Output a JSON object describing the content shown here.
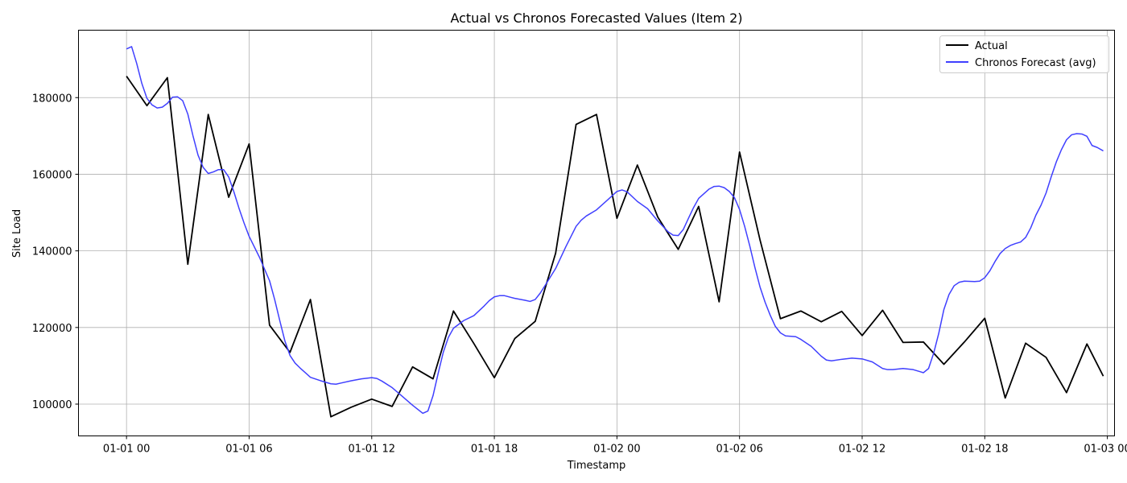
{
  "chart_data": {
    "type": "line",
    "title": "Actual vs Chronos Forecasted Values (Item 2)",
    "xlabel": "Timestamp",
    "ylabel": "Site Load",
    "x_unit": "hours since 01-01 00",
    "xlim": [
      -2.35,
      48.35
    ],
    "ylim": [
      91700,
      197600
    ],
    "grid": true,
    "legend_position": "top-right",
    "x_ticks": [
      {
        "value": 0,
        "label": "01-01 00"
      },
      {
        "value": 6,
        "label": "01-01 06"
      },
      {
        "value": 12,
        "label": "01-01 12"
      },
      {
        "value": 18,
        "label": "01-01 18"
      },
      {
        "value": 24,
        "label": "01-02 00"
      },
      {
        "value": 30,
        "label": "01-02 06"
      },
      {
        "value": 36,
        "label": "01-02 12"
      },
      {
        "value": 42,
        "label": "01-02 18"
      },
      {
        "value": 48,
        "label": "01-03 00"
      }
    ],
    "y_ticks": [
      {
        "value": 100000,
        "label": "100000"
      },
      {
        "value": 120000,
        "label": "120000"
      },
      {
        "value": 140000,
        "label": "140000"
      },
      {
        "value": 160000,
        "label": "160000"
      },
      {
        "value": 180000,
        "label": "180000"
      }
    ],
    "series": [
      {
        "name": "Actual",
        "color": "#000000",
        "points": [
          [
            0,
            185600
          ],
          [
            1,
            177900
          ],
          [
            2,
            185200
          ],
          [
            3,
            136500
          ],
          [
            4,
            175600
          ],
          [
            5,
            154000
          ],
          [
            6,
            167900
          ],
          [
            7,
            120600
          ],
          [
            8,
            113500
          ],
          [
            9,
            127300
          ],
          [
            10,
            96700
          ],
          [
            11,
            99200
          ],
          [
            12,
            101300
          ],
          [
            13,
            99400
          ],
          [
            14,
            109700
          ],
          [
            15,
            106600
          ],
          [
            16,
            124300
          ],
          [
            17,
            115800
          ],
          [
            18,
            106900
          ],
          [
            19,
            117100
          ],
          [
            20,
            121600
          ],
          [
            21,
            139400
          ],
          [
            22,
            173000
          ],
          [
            23,
            175600
          ],
          [
            24,
            148500
          ],
          [
            25,
            162400
          ],
          [
            26,
            148800
          ],
          [
            27,
            140400
          ],
          [
            28,
            151600
          ],
          [
            29,
            126700
          ],
          [
            30,
            165800
          ],
          [
            31,
            142900
          ],
          [
            32,
            122300
          ],
          [
            33,
            124300
          ],
          [
            34,
            121500
          ],
          [
            35,
            124200
          ],
          [
            36,
            117900
          ],
          [
            37,
            124500
          ],
          [
            38,
            116100
          ],
          [
            39,
            116200
          ],
          [
            40,
            110400
          ],
          [
            41,
            116200
          ],
          [
            42,
            122400
          ],
          [
            43,
            101600
          ],
          [
            44,
            115900
          ],
          [
            45,
            112200
          ],
          [
            46,
            103000
          ],
          [
            47,
            115700
          ],
          [
            47.8,
            107300
          ]
        ]
      },
      {
        "name": "Chronos Forecast (avg)",
        "color": "#4040ff",
        "points": [
          [
            0,
            192700
          ],
          [
            0.25,
            193300
          ],
          [
            0.5,
            188900
          ],
          [
            0.75,
            183700
          ],
          [
            1,
            179800
          ],
          [
            1.25,
            178100
          ],
          [
            1.5,
            177300
          ],
          [
            1.75,
            177500
          ],
          [
            2,
            178500
          ],
          [
            2.25,
            180100
          ],
          [
            2.5,
            180200
          ],
          [
            2.75,
            179200
          ],
          [
            3,
            175700
          ],
          [
            3.25,
            170100
          ],
          [
            3.5,
            165000
          ],
          [
            3.75,
            161800
          ],
          [
            4,
            160200
          ],
          [
            4.25,
            160600
          ],
          [
            4.5,
            161200
          ],
          [
            4.75,
            161200
          ],
          [
            5,
            159300
          ],
          [
            5.25,
            155500
          ],
          [
            5.5,
            151200
          ],
          [
            5.75,
            147300
          ],
          [
            6,
            143800
          ],
          [
            6.5,
            138400
          ],
          [
            7,
            132200
          ],
          [
            7.25,
            127300
          ],
          [
            7.5,
            121800
          ],
          [
            7.75,
            116500
          ],
          [
            8,
            112700
          ],
          [
            8.25,
            110700
          ],
          [
            8.5,
            109400
          ],
          [
            9,
            107000
          ],
          [
            9.5,
            106100
          ],
          [
            10,
            105300
          ],
          [
            10.25,
            105200
          ],
          [
            10.5,
            105500
          ],
          [
            11,
            106100
          ],
          [
            11.5,
            106600
          ],
          [
            12,
            106900
          ],
          [
            12.25,
            106700
          ],
          [
            12.5,
            106000
          ],
          [
            13,
            104300
          ],
          [
            13.5,
            102000
          ],
          [
            14,
            99700
          ],
          [
            14.5,
            97600
          ],
          [
            14.75,
            98200
          ],
          [
            15,
            102200
          ],
          [
            15.25,
            108000
          ],
          [
            15.5,
            113500
          ],
          [
            15.75,
            117400
          ],
          [
            16,
            119800
          ],
          [
            16.5,
            121800
          ],
          [
            17,
            123100
          ],
          [
            17.5,
            125600
          ],
          [
            17.75,
            127000
          ],
          [
            18,
            128000
          ],
          [
            18.25,
            128300
          ],
          [
            18.5,
            128300
          ],
          [
            19,
            127600
          ],
          [
            19.5,
            127100
          ],
          [
            19.75,
            126800
          ],
          [
            20,
            127300
          ],
          [
            20.25,
            129000
          ],
          [
            20.5,
            131100
          ],
          [
            21,
            135400
          ],
          [
            21.5,
            141100
          ],
          [
            22,
            146400
          ],
          [
            22.25,
            148000
          ],
          [
            22.5,
            149100
          ],
          [
            23,
            150700
          ],
          [
            23.5,
            153100
          ],
          [
            24,
            155500
          ],
          [
            24.25,
            155900
          ],
          [
            24.5,
            155400
          ],
          [
            25,
            152900
          ],
          [
            25.5,
            151000
          ],
          [
            26,
            147800
          ],
          [
            26.5,
            145000
          ],
          [
            26.75,
            144100
          ],
          [
            27,
            144000
          ],
          [
            27.25,
            145600
          ],
          [
            27.5,
            148500
          ],
          [
            27.75,
            151300
          ],
          [
            28,
            153700
          ],
          [
            28.5,
            156100
          ],
          [
            28.75,
            156800
          ],
          [
            29,
            156900
          ],
          [
            29.25,
            156500
          ],
          [
            29.5,
            155500
          ],
          [
            29.75,
            153900
          ],
          [
            30,
            150800
          ],
          [
            30.25,
            146400
          ],
          [
            30.5,
            141300
          ],
          [
            30.75,
            135700
          ],
          [
            31,
            130600
          ],
          [
            31.25,
            126600
          ],
          [
            31.5,
            123200
          ],
          [
            31.75,
            120300
          ],
          [
            32,
            118600
          ],
          [
            32.25,
            117800
          ],
          [
            32.75,
            117600
          ],
          [
            33,
            116900
          ],
          [
            33.5,
            115100
          ],
          [
            34,
            112500
          ],
          [
            34.25,
            111500
          ],
          [
            34.5,
            111300
          ],
          [
            35,
            111700
          ],
          [
            35.5,
            112000
          ],
          [
            36,
            111800
          ],
          [
            36.5,
            111000
          ],
          [
            37,
            109300
          ],
          [
            37.25,
            109000
          ],
          [
            37.5,
            109000
          ],
          [
            38,
            109300
          ],
          [
            38.5,
            109000
          ],
          [
            38.75,
            108600
          ],
          [
            39,
            108200
          ],
          [
            39.25,
            109300
          ],
          [
            39.5,
            113300
          ],
          [
            39.75,
            118500
          ],
          [
            40,
            124700
          ],
          [
            40.25,
            128600
          ],
          [
            40.5,
            130900
          ],
          [
            40.75,
            131800
          ],
          [
            41,
            132100
          ],
          [
            41.5,
            132000
          ],
          [
            41.75,
            132100
          ],
          [
            42,
            133000
          ],
          [
            42.25,
            134800
          ],
          [
            42.5,
            137200
          ],
          [
            42.75,
            139300
          ],
          [
            43,
            140600
          ],
          [
            43.25,
            141400
          ],
          [
            43.5,
            141900
          ],
          [
            43.75,
            142300
          ],
          [
            44,
            143500
          ],
          [
            44.25,
            146000
          ],
          [
            44.5,
            149300
          ],
          [
            44.75,
            151900
          ],
          [
            45,
            155100
          ],
          [
            45.25,
            159300
          ],
          [
            45.5,
            163200
          ],
          [
            45.75,
            166400
          ],
          [
            46,
            169000
          ],
          [
            46.25,
            170300
          ],
          [
            46.5,
            170600
          ],
          [
            46.75,
            170500
          ],
          [
            47,
            169900
          ],
          [
            47.25,
            167500
          ],
          [
            47.5,
            167000
          ],
          [
            47.8,
            166100
          ]
        ]
      }
    ]
  }
}
